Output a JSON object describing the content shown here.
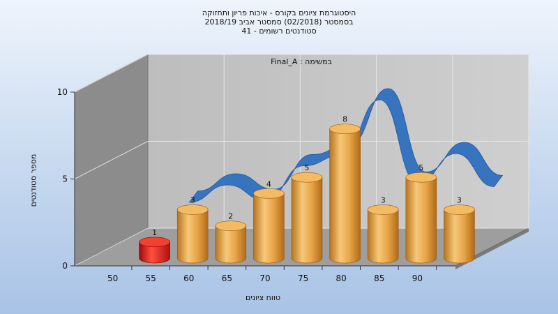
{
  "title": {
    "line1": "היסטוגרמת ציונים בקורס - איכות פריון ותחזוקה",
    "line2": "בסמסטר  (02/2018)  סמסטר אביב 2018/19",
    "line3": "סטודנטים רשומים - 41"
  },
  "colors": {
    "background_top": "#eef4fc",
    "background_bottom": "#a9c3e6",
    "wall_back": "#c2c2c2",
    "wall_side": "#8c8c8c",
    "floor": "#9e9e9e",
    "bar_gold": "#e0a040",
    "bar_red": "#e02020",
    "ribbon": "#3070c0"
  },
  "chart_data": {
    "type": "bar",
    "title": "Final_A : במשימה",
    "xlabel": "טווח ציונים",
    "ylabel": "מספר סטודנטים",
    "ylim": [
      0,
      10
    ],
    "yticks": [
      "0",
      "5",
      "10"
    ],
    "xticks": [
      "50",
      "55",
      "60",
      "65",
      "70",
      "75",
      "80",
      "85",
      "90"
    ],
    "grid": true,
    "bars": [
      {
        "x": 50,
        "value": 1,
        "label": "1",
        "highlight": true
      },
      {
        "x": 55,
        "value": 3,
        "label": "3"
      },
      {
        "x": 60,
        "value": 2,
        "label": "2"
      },
      {
        "x": 65,
        "value": 4,
        "label": "4"
      },
      {
        "x": 70,
        "value": 5,
        "label": "5"
      },
      {
        "x": 75,
        "value": 8,
        "label": "8"
      },
      {
        "x": 80,
        "value": 3,
        "label": "3"
      },
      {
        "x": 85,
        "value": 5,
        "label": "5"
      },
      {
        "x": 90,
        "value": 3,
        "label": "3"
      }
    ],
    "trend": {
      "type": "area-ribbon",
      "points": [
        {
          "x": 57.5,
          "value": 3.5
        },
        {
          "x": 62.5,
          "value": 4.5
        },
        {
          "x": 67.5,
          "value": 3.6
        },
        {
          "x": 72.5,
          "value": 5.6
        },
        {
          "x": 77.5,
          "value": 6.2
        },
        {
          "x": 82.5,
          "value": 9.4
        },
        {
          "x": 87.5,
          "value": 4.6
        },
        {
          "x": 92.5,
          "value": 6.3
        },
        {
          "x": 97.5,
          "value": 4.4
        }
      ]
    }
  }
}
